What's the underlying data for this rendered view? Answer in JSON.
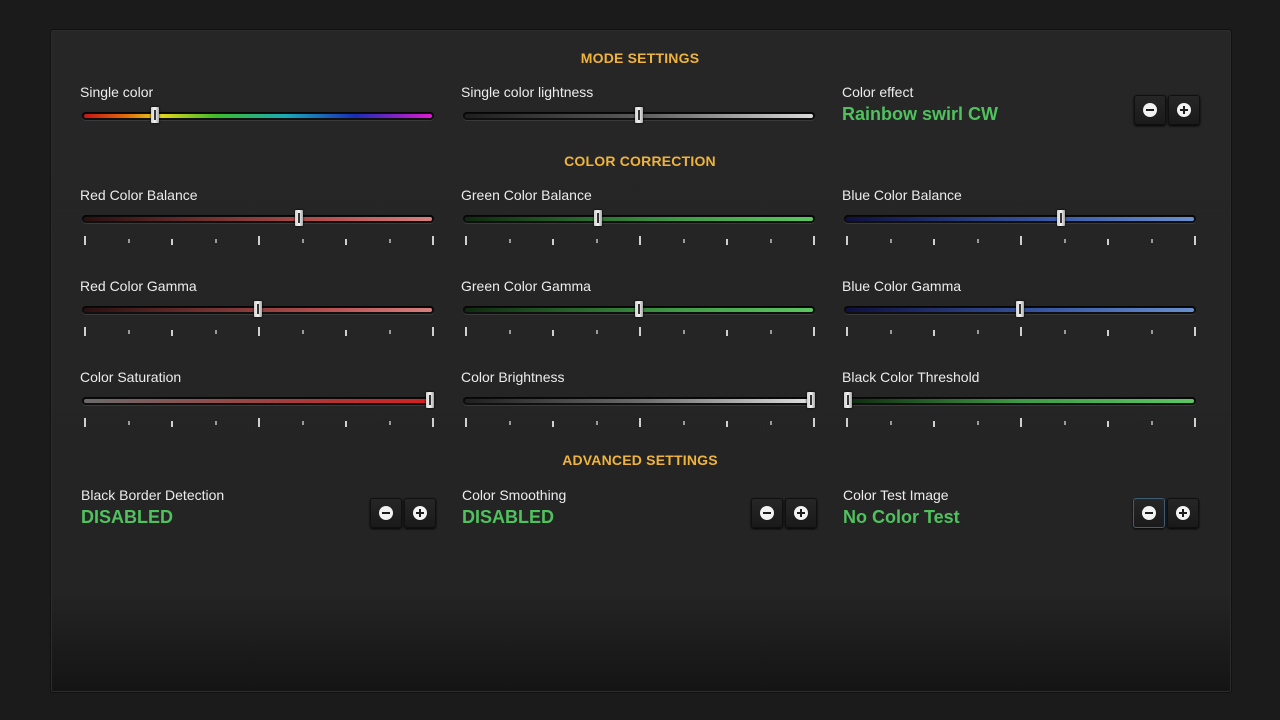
{
  "sections": {
    "mode": "MODE SETTINGS",
    "correction": "COLOR CORRECTION",
    "advanced": "ADVANCED SETTINGS"
  },
  "mode": {
    "single_color": {
      "label": "Single color",
      "level": 0.2
    },
    "single_color_lightness": {
      "label": "Single color lightness",
      "level": 0.5
    },
    "color_effect": {
      "label": "Color effect",
      "value": "Rainbow swirl CW"
    }
  },
  "correction": {
    "red_balance": {
      "label": "Red Color Balance",
      "level": 0.62
    },
    "green_balance": {
      "label": "Green Color Balance",
      "level": 0.38
    },
    "blue_balance": {
      "label": "Blue Color Balance",
      "level": 0.62
    },
    "red_gamma": {
      "label": "Red Color Gamma",
      "level": 0.5
    },
    "green_gamma": {
      "label": "Green Color Gamma",
      "level": 0.5
    },
    "blue_gamma": {
      "label": "Blue Color Gamma",
      "level": 0.5
    },
    "saturation": {
      "label": "Color Saturation",
      "level": 1.0
    },
    "brightness": {
      "label": "Color Brightness",
      "level": 1.0
    },
    "black_threshold": {
      "label": "Black Color Threshold",
      "level": 0.0
    }
  },
  "advanced": {
    "black_border": {
      "label": "Black Border Detection",
      "value": "DISABLED"
    },
    "smoothing": {
      "label": "Color Smoothing",
      "value": "DISABLED"
    },
    "test_image": {
      "label": "Color Test Image",
      "value": "No Color Test"
    }
  },
  "icons": {
    "decrease": "minus-circle-icon",
    "increase": "plus-circle-icon"
  },
  "colors": {
    "accent": "#f0b33c",
    "value": "#4fc25e"
  }
}
